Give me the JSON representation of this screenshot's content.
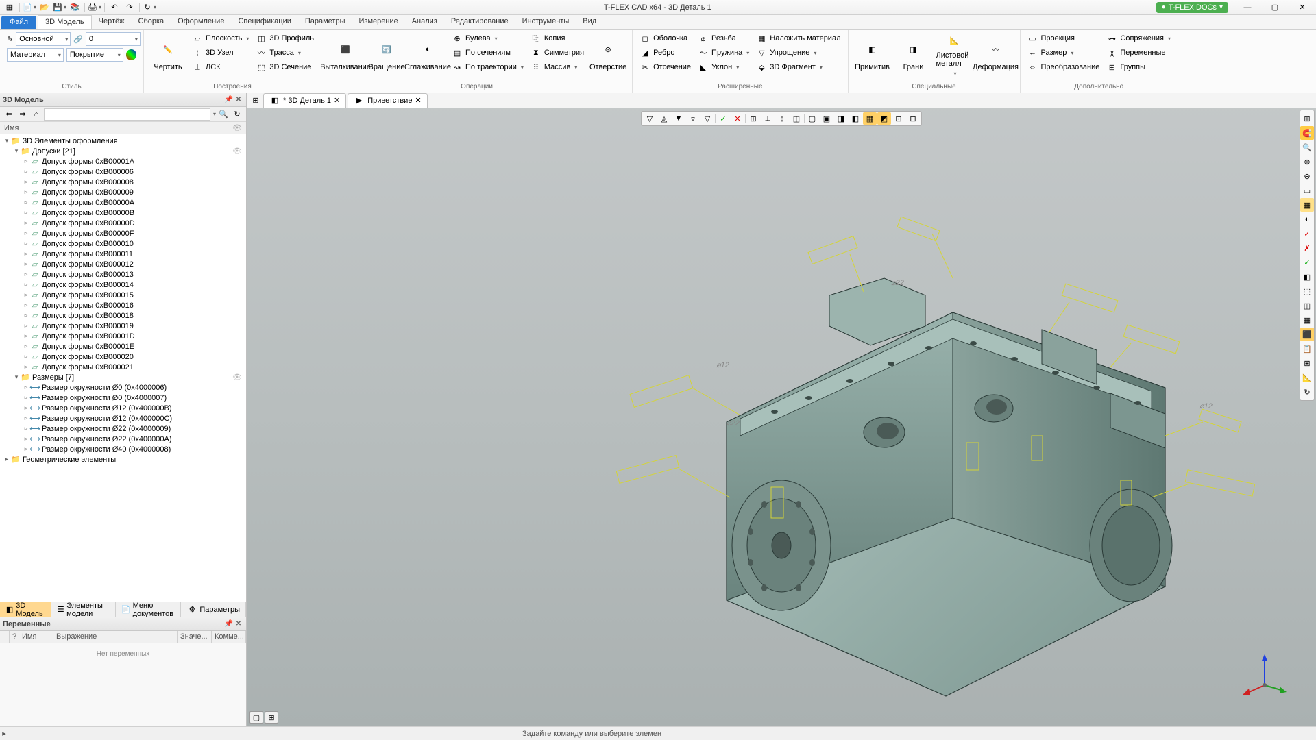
{
  "app": {
    "title": "T-FLEX CAD x64 - 3D Деталь 1",
    "docs": "T-FLEX DOCs"
  },
  "tabs": {
    "file": "Файл",
    "model": "3D Модель",
    "draw": "Чертёж",
    "asm": "Сборка",
    "design": "Оформление",
    "spec": "Спецификации",
    "param": "Параметры",
    "meas": "Измерение",
    "anal": "Анализ",
    "edit": "Редактирование",
    "tools": "Инструменты",
    "view": "Вид"
  },
  "style": {
    "lbl": "Стиль",
    "main": "Основной",
    "zero": "0",
    "mat": "Материал",
    "cover": "Покрытие"
  },
  "constr": {
    "lbl": "Построения",
    "draw": "Чертить",
    "plane": "Плоскость",
    "node": "3D Узел",
    "lcs": "ЛСК",
    "profile": "3D Профиль",
    "trace": "Трасса",
    "sect": "3D Сечение"
  },
  "ops": {
    "lbl": "Операции",
    "ext": "Выталкивание",
    "rev": "Вращение",
    "smooth": "Сглаживание",
    "bool": "Булева",
    "sect": "По сечениям",
    "traj": "По траектории",
    "copy": "Копия",
    "sym": "Симметрия",
    "arr": "Массив",
    "hole": "Отверстие"
  },
  "ext": {
    "lbl": "Расширенные",
    "shell": "Оболочка",
    "rib": "Ребро",
    "cut": "Отсечение",
    "thread": "Резьба",
    "spring": "Пружина",
    "draft": "Уклон",
    "ovl": "Наложить материал",
    "simp": "Упрощение",
    "frag": "3D Фрагмент"
  },
  "spec": {
    "lbl": "Специальные",
    "prim": "Примитив",
    "faces": "Грани",
    "sheet": "Листовой металл",
    "deform": "Деформация"
  },
  "extra": {
    "lbl": "Дополнительно",
    "proj": "Проекция",
    "dim": "Размер",
    "trans": "Преобразование",
    "mate": "Сопряжения",
    "vars": "Переменные",
    "grp": "Группы"
  },
  "panel": {
    "model": "3D Модель",
    "name": "Имя"
  },
  "tree": {
    "root": "3D Элементы оформления",
    "tol": "Допуски [21]",
    "items": [
      "Допуск формы 0xB00001A",
      "Допуск формы 0xB000006",
      "Допуск формы 0xB000008",
      "Допуск формы 0xB000009",
      "Допуск формы 0xB00000A",
      "Допуск формы 0xB00000B",
      "Допуск формы 0xB00000D",
      "Допуск формы 0xB00000F",
      "Допуск формы 0xB000010",
      "Допуск формы 0xB000011",
      "Допуск формы 0xB000012",
      "Допуск формы 0xB000013",
      "Допуск формы 0xB000014",
      "Допуск формы 0xB000015",
      "Допуск формы 0xB000016",
      "Допуск формы 0xB000018",
      "Допуск формы 0xB000019",
      "Допуск формы 0xB00001D",
      "Допуск формы 0xB00001E",
      "Допуск формы 0xB000020",
      "Допуск формы 0xB000021"
    ],
    "dims": "Размеры [7]",
    "dimitems": [
      "Размер окружности Ø0 (0x4000006)",
      "Размер окружности Ø0 (0x4000007)",
      "Размер окружности Ø12 (0x400000B)",
      "Размер окружности Ø12 (0x400000C)",
      "Размер окружности Ø22 (0x4000009)",
      "Размер окружности Ø22 (0x400000A)",
      "Размер окружности Ø40 (0x4000008)"
    ],
    "geom": "Геометрические элементы"
  },
  "btabs": {
    "model": "3D Модель",
    "elem": "Элементы модели",
    "docs": "Меню документов",
    "param": "Параметры"
  },
  "vars": {
    "title": "Переменные",
    "name": "Имя",
    "expr": "Выражение",
    "val": "Значе...",
    "com": "Комме...",
    "none": "Нет переменных"
  },
  "doctabs": {
    "d1": "* 3D Деталь 1",
    "d2": "Приветствие"
  },
  "status": {
    "msg": "Задайте команду или выберите элемент"
  },
  "colors": {
    "accent": "#2a7ad4",
    "anno": "#e6e63a",
    "part1": "#9ab5b0",
    "part2": "#7a9590",
    "part3": "#5a7570"
  }
}
